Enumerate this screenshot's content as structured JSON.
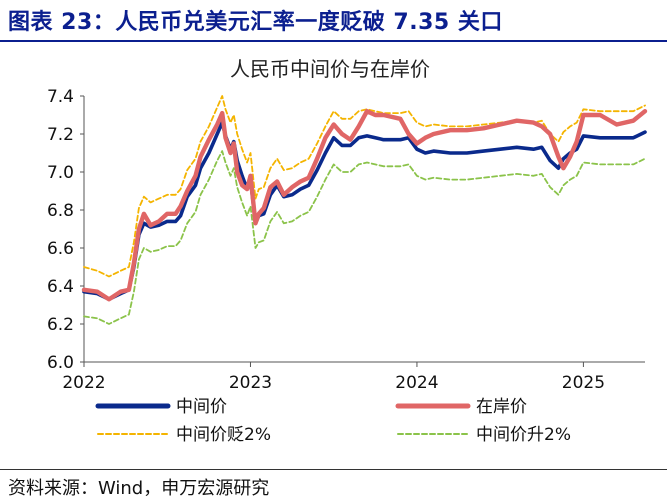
{
  "figure": {
    "title": "图表 23：人民币兑美元汇率一度贬破 7.35 关口",
    "source": "资料来源：Wind，申万宏源研究"
  },
  "colors": {
    "title": "#0b1f8f",
    "central": "#0a2a8c",
    "onshore": "#e06666",
    "depreciation": "#f4b400",
    "appreciation": "#8bc34a"
  },
  "chart_data": {
    "type": "line",
    "title": "人民币中间价与在岸价",
    "xlabel": "",
    "ylabel": "",
    "xlim": [
      2022.0,
      2025.37
    ],
    "ylim": [
      6.0,
      7.4
    ],
    "xticks": [
      "2022",
      "2023",
      "2024",
      "2025"
    ],
    "yticks": [
      "6.0",
      "6.2",
      "6.4",
      "6.6",
      "6.8",
      "7.0",
      "7.2",
      "7.4"
    ],
    "grid": false,
    "legend_position": "bottom",
    "series": [
      {
        "name": "中间价",
        "style": "solid-thick",
        "x": [
          2022.0,
          2022.08,
          2022.15,
          2022.22,
          2022.27,
          2022.3,
          2022.33,
          2022.36,
          2022.4,
          2022.45,
          2022.5,
          2022.55,
          2022.58,
          2022.62,
          2022.67,
          2022.7,
          2022.75,
          2022.8,
          2022.83,
          2022.85,
          2022.88,
          2022.9,
          2022.92,
          2022.95,
          2022.98,
          2023.0,
          2023.03,
          2023.05,
          2023.08,
          2023.12,
          2023.16,
          2023.2,
          2023.25,
          2023.3,
          2023.35,
          2023.4,
          2023.45,
          2023.5,
          2023.55,
          2023.6,
          2023.65,
          2023.7,
          2023.75,
          2023.8,
          2023.9,
          2023.95,
          2024.0,
          2024.05,
          2024.1,
          2024.2,
          2024.3,
          2024.4,
          2024.5,
          2024.6,
          2024.7,
          2024.75,
          2024.8,
          2024.85,
          2024.88,
          2024.92,
          2024.96,
          2025.0,
          2025.1,
          2025.2,
          2025.3,
          2025.37
        ],
        "y": [
          6.37,
          6.36,
          6.33,
          6.36,
          6.38,
          6.5,
          6.67,
          6.73,
          6.71,
          6.72,
          6.74,
          6.74,
          6.77,
          6.87,
          6.93,
          7.02,
          7.1,
          7.2,
          7.26,
          7.19,
          7.12,
          7.16,
          7.06,
          6.98,
          6.91,
          6.96,
          6.73,
          6.77,
          6.78,
          6.88,
          6.93,
          6.87,
          6.88,
          6.91,
          6.93,
          7.01,
          7.1,
          7.18,
          7.14,
          7.14,
          7.18,
          7.19,
          7.18,
          7.17,
          7.17,
          7.18,
          7.12,
          7.1,
          7.11,
          7.1,
          7.1,
          7.11,
          7.12,
          7.13,
          7.12,
          7.13,
          7.06,
          7.02,
          7.07,
          7.1,
          7.12,
          7.19,
          7.18,
          7.18,
          7.18,
          7.21
        ]
      },
      {
        "name": "在岸价",
        "style": "solid-thick",
        "x": [
          2022.0,
          2022.08,
          2022.15,
          2022.22,
          2022.27,
          2022.3,
          2022.33,
          2022.36,
          2022.4,
          2022.45,
          2022.5,
          2022.55,
          2022.58,
          2022.62,
          2022.67,
          2022.7,
          2022.75,
          2022.8,
          2022.83,
          2022.85,
          2022.88,
          2022.9,
          2022.92,
          2022.95,
          2022.98,
          2023.0,
          2023.03,
          2023.05,
          2023.08,
          2023.12,
          2023.16,
          2023.2,
          2023.25,
          2023.3,
          2023.35,
          2023.4,
          2023.45,
          2023.5,
          2023.55,
          2023.6,
          2023.65,
          2023.7,
          2023.75,
          2023.8,
          2023.9,
          2023.95,
          2024.0,
          2024.05,
          2024.1,
          2024.2,
          2024.3,
          2024.4,
          2024.5,
          2024.6,
          2024.7,
          2024.75,
          2024.8,
          2024.85,
          2024.88,
          2024.92,
          2024.96,
          2025.0,
          2025.1,
          2025.2,
          2025.3,
          2025.37
        ],
        "y": [
          6.38,
          6.37,
          6.33,
          6.37,
          6.38,
          6.52,
          6.7,
          6.78,
          6.72,
          6.74,
          6.78,
          6.78,
          6.82,
          6.9,
          6.98,
          7.08,
          7.17,
          7.25,
          7.31,
          7.18,
          7.1,
          7.15,
          7.0,
          6.93,
          6.91,
          6.98,
          6.73,
          6.78,
          6.81,
          6.92,
          6.95,
          6.88,
          6.92,
          6.95,
          6.97,
          7.07,
          7.18,
          7.25,
          7.2,
          7.17,
          7.24,
          7.32,
          7.3,
          7.3,
          7.28,
          7.2,
          7.15,
          7.18,
          7.2,
          7.22,
          7.22,
          7.23,
          7.25,
          7.27,
          7.26,
          7.24,
          7.2,
          7.08,
          7.02,
          7.08,
          7.16,
          7.3,
          7.3,
          7.25,
          7.27,
          7.32
        ]
      },
      {
        "name": "中间价贬2%",
        "style": "dashed",
        "x": [
          2022.0,
          2022.08,
          2022.15,
          2022.22,
          2022.27,
          2022.3,
          2022.33,
          2022.36,
          2022.4,
          2022.45,
          2022.5,
          2022.55,
          2022.58,
          2022.62,
          2022.67,
          2022.7,
          2022.75,
          2022.8,
          2022.83,
          2022.85,
          2022.88,
          2022.9,
          2022.92,
          2022.95,
          2022.98,
          2023.0,
          2023.03,
          2023.05,
          2023.08,
          2023.12,
          2023.16,
          2023.2,
          2023.25,
          2023.3,
          2023.35,
          2023.4,
          2023.45,
          2023.5,
          2023.55,
          2023.6,
          2023.65,
          2023.7,
          2023.75,
          2023.8,
          2023.9,
          2023.95,
          2024.0,
          2024.05,
          2024.1,
          2024.2,
          2024.3,
          2024.4,
          2024.5,
          2024.6,
          2024.7,
          2024.75,
          2024.8,
          2024.85,
          2024.88,
          2024.92,
          2024.96,
          2025.0,
          2025.1,
          2025.2,
          2025.3,
          2025.37
        ],
        "y": [
          6.5,
          6.48,
          6.45,
          6.48,
          6.5,
          6.63,
          6.81,
          6.87,
          6.84,
          6.86,
          6.88,
          6.88,
          6.91,
          7.01,
          7.07,
          7.16,
          7.24,
          7.34,
          7.4,
          7.33,
          7.26,
          7.3,
          7.2,
          7.12,
          7.05,
          7.1,
          6.86,
          6.91,
          6.92,
          7.02,
          7.07,
          7.01,
          7.02,
          7.05,
          7.07,
          7.15,
          7.24,
          7.32,
          7.28,
          7.28,
          7.32,
          7.33,
          7.32,
          7.31,
          7.31,
          7.32,
          7.26,
          7.24,
          7.25,
          7.24,
          7.24,
          7.25,
          7.26,
          7.27,
          7.26,
          7.27,
          7.2,
          7.16,
          7.21,
          7.24,
          7.26,
          7.33,
          7.32,
          7.32,
          7.32,
          7.35
        ]
      },
      {
        "name": "中间价升2%",
        "style": "dashed",
        "x": [
          2022.0,
          2022.08,
          2022.15,
          2022.22,
          2022.27,
          2022.3,
          2022.33,
          2022.36,
          2022.4,
          2022.45,
          2022.5,
          2022.55,
          2022.58,
          2022.62,
          2022.67,
          2022.7,
          2022.75,
          2022.8,
          2022.83,
          2022.85,
          2022.88,
          2022.9,
          2022.92,
          2022.95,
          2022.98,
          2023.0,
          2023.03,
          2023.05,
          2023.08,
          2023.12,
          2023.16,
          2023.2,
          2023.25,
          2023.3,
          2023.35,
          2023.4,
          2023.45,
          2023.5,
          2023.55,
          2023.6,
          2023.65,
          2023.7,
          2023.75,
          2023.8,
          2023.9,
          2023.95,
          2024.0,
          2024.05,
          2024.1,
          2024.2,
          2024.3,
          2024.4,
          2024.5,
          2024.6,
          2024.7,
          2024.75,
          2024.8,
          2024.85,
          2024.88,
          2024.92,
          2024.96,
          2025.0,
          2025.1,
          2025.2,
          2025.3,
          2025.37
        ],
        "y": [
          6.24,
          6.23,
          6.2,
          6.23,
          6.25,
          6.37,
          6.54,
          6.6,
          6.58,
          6.59,
          6.61,
          6.61,
          6.64,
          6.73,
          6.79,
          6.88,
          6.96,
          7.06,
          7.11,
          7.05,
          6.98,
          7.02,
          6.92,
          6.84,
          6.77,
          6.82,
          6.6,
          6.63,
          6.64,
          6.74,
          6.79,
          6.73,
          6.74,
          6.77,
          6.79,
          6.87,
          6.96,
          7.04,
          7.0,
          7.0,
          7.04,
          7.05,
          7.04,
          7.03,
          7.03,
          7.04,
          6.98,
          6.96,
          6.97,
          6.96,
          6.96,
          6.97,
          6.98,
          6.99,
          6.98,
          6.99,
          6.92,
          6.88,
          6.93,
          6.96,
          6.98,
          7.05,
          7.04,
          7.04,
          7.04,
          7.07
        ]
      }
    ]
  }
}
